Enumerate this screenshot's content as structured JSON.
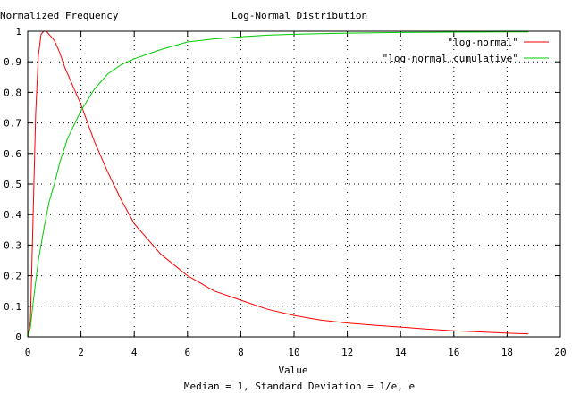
{
  "chart_data": {
    "type": "line",
    "title": "Log-Normal Distribution",
    "ylabel": "Normalized Frequency",
    "xlabel": "Value",
    "subtitle": "Median = 1, Standard Deviation = 1/e, e",
    "xlim": [
      0,
      20
    ],
    "ylim": [
      0,
      1
    ],
    "grid": true,
    "legend_position": "top-right",
    "x_ticks": [
      "0",
      "2",
      "4",
      "6",
      "8",
      "10",
      "12",
      "14",
      "16",
      "18",
      "20"
    ],
    "y_ticks": [
      "0",
      "0.1",
      "0.2",
      "0.3",
      "0.4",
      "0.5",
      "0.6",
      "0.7",
      "0.8",
      "0.9",
      "1"
    ],
    "series": [
      {
        "name": "\"log-normal\"",
        "color": "#ff0000",
        "x": [
          0.0,
          0.1,
          0.2,
          0.3,
          0.4,
          0.5,
          0.6,
          0.7,
          0.8,
          0.9,
          1.0,
          1.1,
          1.2,
          1.4,
          1.6,
          1.8,
          2.0,
          2.5,
          3.0,
          3.5,
          4.0,
          5.0,
          6.0,
          7.0,
          8.0,
          9.0,
          10.0,
          11.0,
          12.0,
          13.0,
          14.0,
          15.0,
          16.0,
          17.0,
          18.0,
          18.8
        ],
        "y": [
          0.0,
          0.05,
          0.39,
          0.73,
          0.92,
          0.99,
          1.0,
          1.0,
          0.99,
          0.98,
          0.97,
          0.95,
          0.93,
          0.88,
          0.84,
          0.8,
          0.76,
          0.64,
          0.54,
          0.45,
          0.37,
          0.27,
          0.2,
          0.15,
          0.12,
          0.09,
          0.07,
          0.055,
          0.045,
          0.038,
          0.032,
          0.025,
          0.02,
          0.016,
          0.012,
          0.01
        ]
      },
      {
        "name": "\"log-normal,cumulative\"",
        "color": "#00cc00",
        "x": [
          0.0,
          0.1,
          0.2,
          0.3,
          0.4,
          0.5,
          0.6,
          0.8,
          1.0,
          1.2,
          1.5,
          2.0,
          2.5,
          3.0,
          3.5,
          4.0,
          5.0,
          6.0,
          7.0,
          8.0,
          9.0,
          10.0,
          12.0,
          14.0,
          16.0,
          18.0,
          18.8
        ],
        "y": [
          0.0,
          0.03,
          0.11,
          0.18,
          0.25,
          0.3,
          0.35,
          0.44,
          0.5,
          0.57,
          0.65,
          0.74,
          0.81,
          0.86,
          0.89,
          0.91,
          0.94,
          0.965,
          0.975,
          0.982,
          0.987,
          0.99,
          0.994,
          0.996,
          0.997,
          0.998,
          0.998
        ]
      }
    ]
  }
}
